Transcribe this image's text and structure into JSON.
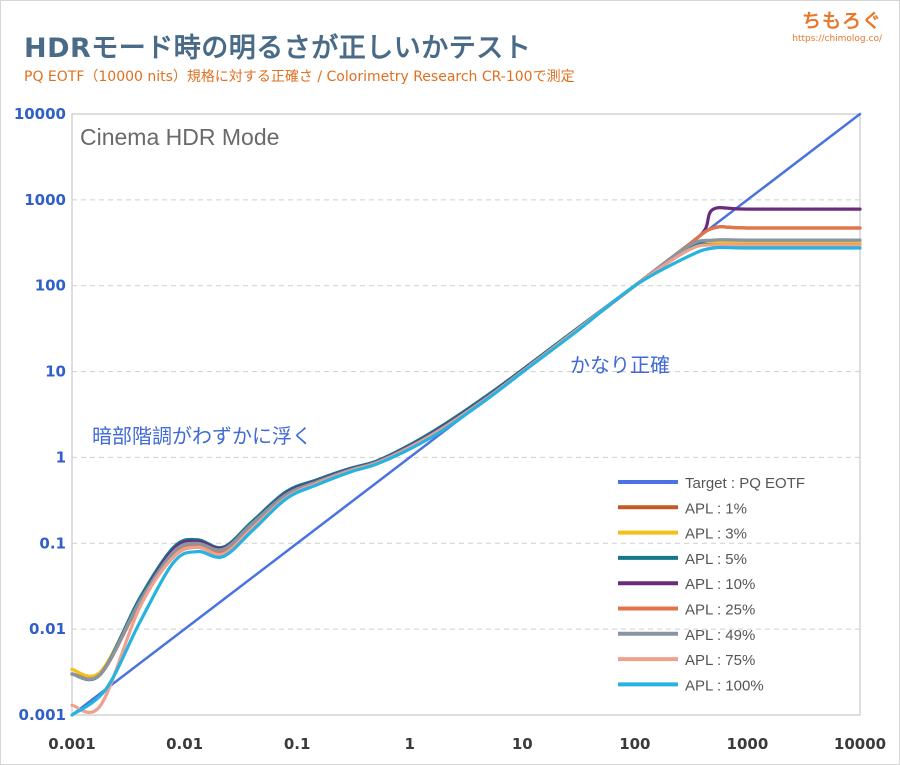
{
  "header": {
    "title": "HDRモード時の明るさが正しいかテスト",
    "subtitle": "PQ EOTF（10000 nits）規格に対する正確さ / Colorimetry Research CR-100で測定",
    "brand_name": "ちもろぐ",
    "brand_url": "https://chimolog.co/"
  },
  "chart_data": {
    "type": "line",
    "title": "Cinema HDR Mode",
    "xlabel": "",
    "ylabel": "",
    "x_scale": "log",
    "y_scale": "log",
    "xlim": [
      0.001,
      10000
    ],
    "ylim": [
      0.001,
      10000
    ],
    "grid": "horizontal dashed",
    "legend_position": "bottom-right",
    "x_ticks": [
      "0.001",
      "0.01",
      "0.1",
      "1",
      "10",
      "100",
      "1000",
      "10000"
    ],
    "y_ticks": [
      "0.001",
      "0.01",
      "0.1",
      "1",
      "10",
      "100",
      "1000",
      "10000"
    ],
    "annotations": [
      "暗部階調がわずかに浮く",
      "かなり正確"
    ],
    "series": [
      {
        "name": "Target : PQ EOTF",
        "color": "#4a72e0",
        "x": [
          0.001,
          10000
        ],
        "y": [
          0.001,
          10000
        ]
      },
      {
        "name": "APL : 1%",
        "color": "#c55a22",
        "x": [
          0.001,
          0.0018,
          0.004,
          0.008,
          0.013,
          0.022,
          0.04,
          0.08,
          0.15,
          0.3,
          0.5,
          1,
          2,
          5,
          10,
          30,
          100,
          300,
          500,
          1000,
          10000
        ],
        "y": [
          0.003,
          0.0031,
          0.02,
          0.07,
          0.09,
          0.075,
          0.15,
          0.35,
          0.5,
          0.7,
          0.85,
          1.3,
          2.2,
          5,
          10,
          30,
          100,
          300,
          470,
          470,
          470
        ]
      },
      {
        "name": "APL : 3%",
        "color": "#f2c018",
        "x": [
          0.001,
          0.0018,
          0.004,
          0.008,
          0.013,
          0.022,
          0.04,
          0.08,
          0.15,
          0.3,
          0.5,
          1,
          2,
          5,
          10,
          30,
          100,
          300,
          500,
          1000,
          10000
        ],
        "y": [
          0.0034,
          0.0032,
          0.022,
          0.08,
          0.1,
          0.085,
          0.17,
          0.38,
          0.52,
          0.72,
          0.88,
          1.35,
          2.3,
          5.2,
          10.3,
          30,
          100,
          280,
          320,
          320,
          320
        ]
      },
      {
        "name": "APL : 5%",
        "color": "#17788a",
        "x": [
          0.001,
          0.0018,
          0.004,
          0.008,
          0.013,
          0.022,
          0.04,
          0.08,
          0.15,
          0.3,
          0.5,
          1,
          2,
          5,
          10,
          30,
          100,
          300,
          500,
          1000,
          10000
        ],
        "y": [
          0.003,
          0.003,
          0.023,
          0.09,
          0.11,
          0.09,
          0.18,
          0.4,
          0.55,
          0.75,
          0.9,
          1.4,
          2.4,
          5.4,
          10.5,
          31,
          100,
          280,
          300,
          300,
          300
        ]
      },
      {
        "name": "APL : 10%",
        "color": "#6a2a7e",
        "x": [
          0.001,
          0.0018,
          0.004,
          0.008,
          0.013,
          0.022,
          0.04,
          0.08,
          0.15,
          0.3,
          0.5,
          1,
          2,
          5,
          10,
          30,
          100,
          300,
          420,
          500,
          1000,
          10000
        ],
        "y": [
          0.003,
          0.003,
          0.021,
          0.085,
          0.105,
          0.088,
          0.17,
          0.38,
          0.53,
          0.73,
          0.88,
          1.35,
          2.3,
          5.2,
          10.3,
          30,
          100,
          300,
          450,
          780,
          780,
          780
        ]
      },
      {
        "name": "APL : 25%",
        "color": "#e0744a",
        "x": [
          0.001,
          0.0018,
          0.004,
          0.008,
          0.013,
          0.022,
          0.04,
          0.08,
          0.15,
          0.3,
          0.5,
          1,
          2,
          5,
          10,
          30,
          100,
          300,
          500,
          1000,
          10000
        ],
        "y": [
          0.003,
          0.003,
          0.02,
          0.075,
          0.095,
          0.08,
          0.16,
          0.36,
          0.51,
          0.71,
          0.86,
          1.3,
          2.2,
          5,
          10,
          30,
          100,
          300,
          470,
          470,
          470
        ]
      },
      {
        "name": "APL : 49%",
        "color": "#8895a2",
        "x": [
          0.001,
          0.0018,
          0.004,
          0.008,
          0.013,
          0.022,
          0.04,
          0.08,
          0.15,
          0.3,
          0.5,
          1,
          2,
          5,
          10,
          30,
          100,
          300,
          500,
          1000,
          10000
        ],
        "y": [
          0.003,
          0.003,
          0.021,
          0.08,
          0.1,
          0.085,
          0.17,
          0.37,
          0.52,
          0.72,
          0.87,
          1.33,
          2.25,
          5.1,
          10.1,
          30,
          100,
          290,
          340,
          340,
          340
        ]
      },
      {
        "name": "APL : 75%",
        "color": "#efa08e",
        "x": [
          0.001,
          0.0018,
          0.004,
          0.008,
          0.013,
          0.022,
          0.04,
          0.08,
          0.15,
          0.3,
          0.5,
          1,
          2,
          5,
          10,
          30,
          100,
          300,
          500,
          1000,
          10000
        ],
        "y": [
          0.0013,
          0.0013,
          0.018,
          0.07,
          0.09,
          0.075,
          0.15,
          0.34,
          0.5,
          0.7,
          0.85,
          1.3,
          2.2,
          5,
          10,
          30,
          100,
          260,
          300,
          300,
          300
        ]
      },
      {
        "name": "APL : 100%",
        "color": "#27b3e0",
        "x": [
          0.001,
          0.002,
          0.004,
          0.008,
          0.013,
          0.022,
          0.04,
          0.08,
          0.15,
          0.3,
          0.5,
          1,
          2,
          5,
          10,
          30,
          100,
          300,
          500,
          1000,
          10000
        ],
        "y": [
          0.001,
          0.002,
          0.012,
          0.06,
          0.08,
          0.07,
          0.14,
          0.33,
          0.48,
          0.68,
          0.83,
          1.25,
          2.1,
          4.9,
          9.8,
          29,
          100,
          220,
          275,
          275,
          275
        ]
      }
    ]
  }
}
